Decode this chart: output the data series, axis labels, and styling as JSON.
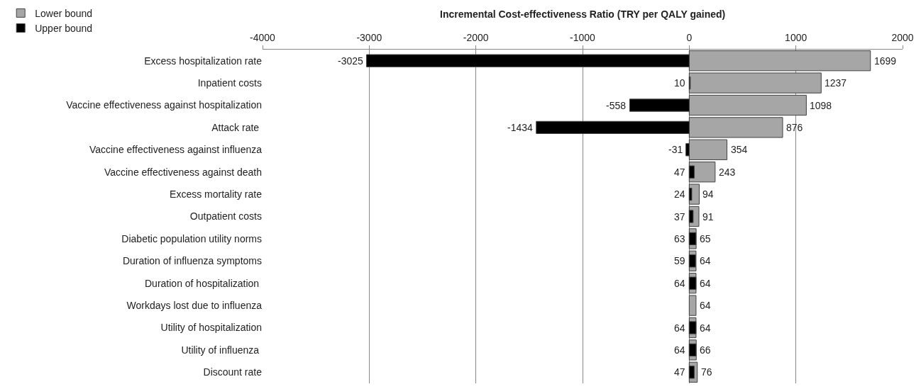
{
  "chart_data": {
    "type": "bar",
    "orientation": "horizontal",
    "xlabel": "Incremental Cost-effectiveness Ratio (TRY per QALY gained)",
    "categories": [
      "Excess hospitalization rate",
      "Inpatient costs",
      "Vaccine effectiveness against hospitalization",
      "Attack rate ",
      "Vaccine effectiveness against influenza",
      "Vaccine effectiveness against death",
      "Excess mortality rate",
      "Outpatient costs",
      "Diabetic population utility norms",
      "Duration of influenza symptoms",
      "Duration of hospitalization ",
      "Workdays lost due to influenza",
      "Utility of hospitalization",
      "Utility of influenza ",
      "Discount rate"
    ],
    "series": [
      {
        "name": "Lower bound",
        "color": "#a6a6a6",
        "values": [
          1699,
          1237,
          1098,
          876,
          354,
          243,
          94,
          91,
          65,
          64,
          64,
          64,
          64,
          66,
          76
        ]
      },
      {
        "name": "Upper bound",
        "color": "#000000",
        "values": [
          -3025,
          10,
          -558,
          -1434,
          -31,
          47,
          24,
          37,
          63,
          59,
          64,
          null,
          64,
          64,
          47
        ]
      }
    ],
    "data_labels": true,
    "xlim": [
      -4000,
      2000
    ],
    "xticks": [
      -4000,
      -3000,
      -2000,
      -1000,
      0,
      1000,
      2000
    ],
    "grid": "x",
    "legend": "top left"
  }
}
